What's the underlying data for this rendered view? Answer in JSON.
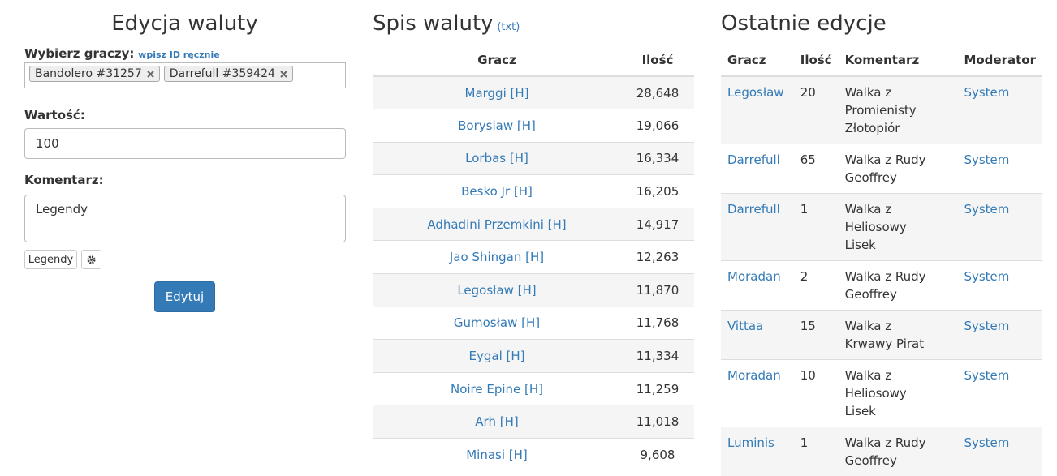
{
  "edit": {
    "title": "Edycja waluty",
    "player_label": "Wybierz graczy:",
    "manual_link": "wpisz ID ręcznie",
    "tags": [
      "Bandolero #31257",
      "Darrefull #359424"
    ],
    "value_label": "Wartość:",
    "value": "100",
    "comment_label": "Komentarz:",
    "comment": "Legendy",
    "preset_button": "Legendy",
    "submit": "Edytuj"
  },
  "currency_list": {
    "title": "Spis waluty",
    "txt_link": "(txt)",
    "headers": [
      "Gracz",
      "Ilość"
    ],
    "rows": [
      [
        "Marggi [H]",
        "28,648"
      ],
      [
        "Boryslaw [H]",
        "19,066"
      ],
      [
        "Lorbas [H]",
        "16,334"
      ],
      [
        "Besko Jr [H]",
        "16,205"
      ],
      [
        "Adhadini Przemkini [H]",
        "14,917"
      ],
      [
        "Jao Shingan [H]",
        "12,263"
      ],
      [
        "Legosław [H]",
        "11,870"
      ],
      [
        "Gumosław [H]",
        "11,768"
      ],
      [
        "Eygal [H]",
        "11,334"
      ],
      [
        "Noire Epine [H]",
        "11,259"
      ],
      [
        "Arh [H]",
        "11,018"
      ],
      [
        "Minasi [H]",
        "9,608"
      ]
    ]
  },
  "recent": {
    "title": "Ostatnie edycje",
    "headers": [
      "Gracz",
      "Ilość",
      "Komentarz",
      "Moderator"
    ],
    "rows": [
      [
        "Legosław",
        "20",
        "Walka z Promienisty Złotopiór",
        "System"
      ],
      [
        "Darrefull",
        "65",
        "Walka z Rudy Geoffrey",
        "System"
      ],
      [
        "Darrefull",
        "1",
        "Walka z Heliosowy Lisek",
        "System"
      ],
      [
        "Moradan",
        "2",
        "Walka z Rudy Geoffrey",
        "System"
      ],
      [
        "Vittaa",
        "15",
        "Walka z Krwawy Pirat",
        "System"
      ],
      [
        "Moradan",
        "10",
        "Walka z Heliosowy Lisek",
        "System"
      ],
      [
        "Luminis",
        "1",
        "Walka z Rudy Geoffrey",
        "System"
      ]
    ]
  }
}
